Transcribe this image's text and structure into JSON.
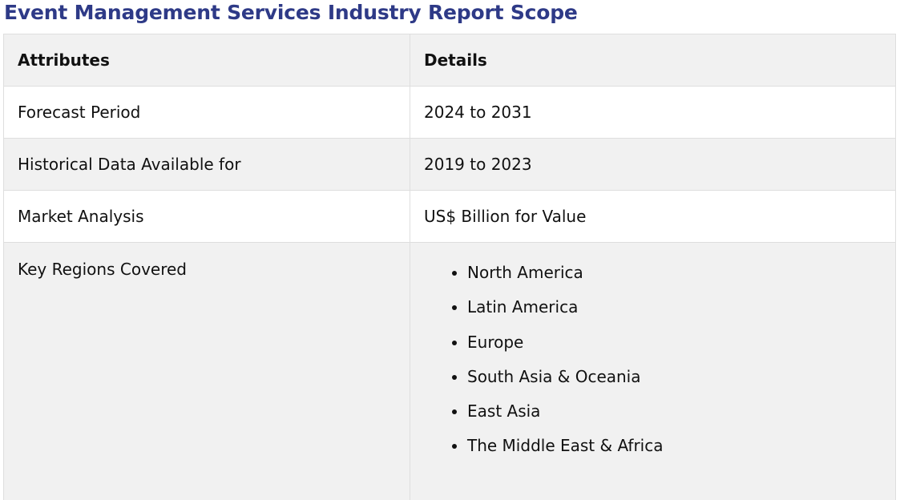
{
  "page": {
    "title": "Event Management Services Industry Report Scope"
  },
  "table": {
    "headers": {
      "attributes": "Attributes",
      "details": "Details"
    },
    "rows": [
      {
        "attribute": "Forecast Period",
        "detail": "2024 to 2031"
      },
      {
        "attribute": "Historical Data Available for",
        "detail": "2019 to 2023"
      },
      {
        "attribute": "Market Analysis",
        "detail": "US$ Billion for Value"
      }
    ],
    "regions": {
      "attribute": "Key Regions Covered",
      "items": [
        "North America",
        "Latin America",
        "Europe",
        "South Asia & Oceania",
        "East Asia",
        "The Middle East & Africa"
      ]
    }
  },
  "colors": {
    "title": "#2e3a87",
    "shaded_row": "#f1f1f1",
    "border": "#dedede"
  }
}
